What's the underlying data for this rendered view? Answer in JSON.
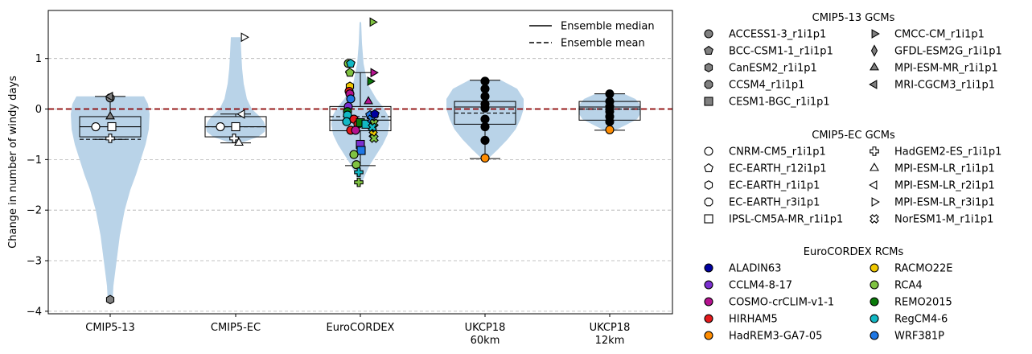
{
  "chart_data": {
    "type": "violin",
    "ylabel": "Change in number of windy days",
    "ylim": [
      -4.05,
      1.95
    ],
    "yticks": [
      -4,
      -3,
      -2,
      -1,
      0,
      1
    ],
    "ytick_labels": [
      "−4",
      "−3",
      "−2",
      "−1",
      "0",
      "1"
    ],
    "grid": "horizontal dashed",
    "zero_line": {
      "value": 0,
      "color": "#8b0000",
      "style": "dashed"
    },
    "categories": [
      {
        "label": "CMIP5-13",
        "label2": ""
      },
      {
        "label": "CMIP5-EC",
        "label2": ""
      },
      {
        "label": "EuroCORDEX",
        "label2": ""
      },
      {
        "label": "UKCP18",
        "label2": "60km"
      },
      {
        "label": "UKCP18",
        "label2": "12km"
      }
    ],
    "violin_color": "#b9d3e8",
    "violins": [
      {
        "profile": [
          [
            -3.8,
            3
          ],
          [
            -3.5,
            4
          ],
          [
            -3.0,
            8
          ],
          [
            -2.5,
            12
          ],
          [
            -2.0,
            18
          ],
          [
            -1.6,
            25
          ],
          [
            -1.3,
            32
          ],
          [
            -1.0,
            38
          ],
          [
            -0.7,
            44
          ],
          [
            -0.4,
            48
          ],
          [
            -0.1,
            49
          ],
          [
            0.1,
            47
          ],
          [
            0.25,
            42
          ]
        ]
      },
      {
        "profile": [
          [
            -0.65,
            10
          ],
          [
            -0.55,
            28
          ],
          [
            -0.45,
            36
          ],
          [
            -0.35,
            37
          ],
          [
            -0.25,
            35
          ],
          [
            -0.15,
            30
          ],
          [
            0.0,
            20
          ],
          [
            0.2,
            14
          ],
          [
            0.5,
            10
          ],
          [
            0.8,
            8
          ],
          [
            1.1,
            7
          ],
          [
            1.42,
            6
          ]
        ]
      },
      {
        "profile": [
          [
            -1.45,
            2
          ],
          [
            -1.3,
            6
          ],
          [
            -1.1,
            12
          ],
          [
            -0.9,
            20
          ],
          [
            -0.7,
            28
          ],
          [
            -0.5,
            34
          ],
          [
            -0.3,
            36
          ],
          [
            -0.15,
            35
          ],
          [
            0.0,
            30
          ],
          [
            0.2,
            20
          ],
          [
            0.5,
            9
          ],
          [
            0.9,
            4
          ],
          [
            1.3,
            2
          ],
          [
            1.72,
            1
          ]
        ]
      },
      {
        "profile": [
          [
            -0.98,
            4
          ],
          [
            -0.8,
            16
          ],
          [
            -0.6,
            28
          ],
          [
            -0.4,
            38
          ],
          [
            -0.2,
            44
          ],
          [
            0.0,
            48
          ],
          [
            0.2,
            48
          ],
          [
            0.4,
            40
          ],
          [
            0.57,
            20
          ]
        ]
      },
      {
        "profile": [
          [
            -0.42,
            7
          ],
          [
            -0.3,
            22
          ],
          [
            -0.2,
            34
          ],
          [
            -0.1,
            38
          ],
          [
            0.0,
            38
          ],
          [
            0.1,
            37
          ],
          [
            0.2,
            32
          ],
          [
            0.3,
            18
          ]
        ]
      }
    ],
    "boxes": [
      {
        "q1": -0.55,
        "q3": -0.15,
        "median": -0.35,
        "mean": -0.6,
        "whisker_low": -0.6,
        "whisker_high": 0.25
      },
      {
        "q1": -0.55,
        "q3": -0.15,
        "median": -0.35,
        "mean": -0.35,
        "whisker_low": -0.67,
        "whisker_high": -0.1
      },
      {
        "q1": -0.43,
        "q3": 0.05,
        "median": -0.22,
        "mean": -0.15,
        "whisker_low": -1.12,
        "whisker_high": 0.72
      },
      {
        "q1": -0.3,
        "q3": 0.15,
        "median": 0.04,
        "mean": -0.08,
        "whisker_low": -0.98,
        "whisker_high": 0.57
      },
      {
        "q1": -0.22,
        "q3": 0.15,
        "median": 0.04,
        "mean": 0.0,
        "whisker_low": -0.42,
        "whisker_high": 0.3
      }
    ],
    "points": [
      {
        "cat": 0,
        "dx": 0,
        "y": 0.22,
        "marker": "circle",
        "fill": "#808080"
      },
      {
        "cat": 0,
        "dx": 0,
        "y": 0.25,
        "marker": "tri-left",
        "fill": "#808080"
      },
      {
        "cat": 0,
        "dx": 0,
        "y": -3.77,
        "marker": "hexagon",
        "fill": "#808080"
      },
      {
        "cat": 0,
        "dx": 0,
        "y": -0.15,
        "marker": "tri-up",
        "fill": "#808080"
      },
      {
        "cat": 0,
        "dx": -18,
        "y": -0.35,
        "marker": "circle",
        "fill": "#ffffff"
      },
      {
        "cat": 0,
        "dx": 2,
        "y": -0.35,
        "marker": "square",
        "fill": "#ffffff"
      },
      {
        "cat": 0,
        "dx": 0,
        "y": -0.58,
        "marker": "plus",
        "fill": "#ffffff"
      },
      {
        "cat": 1,
        "dx": -19,
        "y": -0.35,
        "marker": "circle",
        "fill": "#ffffff"
      },
      {
        "cat": 1,
        "dx": 0,
        "y": -0.35,
        "marker": "square",
        "fill": "#ffffff"
      },
      {
        "cat": 1,
        "dx": 8,
        "y": -0.1,
        "marker": "tri-left",
        "fill": "#ffffff"
      },
      {
        "cat": 1,
        "dx": 10,
        "y": 1.42,
        "marker": "tri-right",
        "fill": "#ffffff"
      },
      {
        "cat": 1,
        "dx": -2,
        "y": -0.58,
        "marker": "plus",
        "fill": "#ffffff"
      },
      {
        "cat": 1,
        "dx": 4,
        "y": -0.67,
        "marker": "tri-up",
        "fill": "#ffffff"
      },
      {
        "cat": 2,
        "dx": -15,
        "y": 0.9,
        "marker": "circle",
        "fill": "#7fc241"
      },
      {
        "cat": 2,
        "dx": -12,
        "y": 0.9,
        "marker": "pentagon",
        "fill": "#12b8c4"
      },
      {
        "cat": 2,
        "dx": -13,
        "y": 0.72,
        "marker": "pentagon",
        "fill": "#7fc241"
      },
      {
        "cat": 2,
        "dx": 15,
        "y": 1.72,
        "marker": "tri-right",
        "fill": "#7fc241"
      },
      {
        "cat": 2,
        "dx": 16,
        "y": 0.72,
        "marker": "tri-right",
        "fill": "#b5128f"
      },
      {
        "cat": 2,
        "dx": 12,
        "y": 0.55,
        "marker": "tri-right",
        "fill": "#0a7a0a"
      },
      {
        "cat": 2,
        "dx": -13,
        "y": 0.45,
        "marker": "hexagon",
        "fill": "#f0c800"
      },
      {
        "cat": 2,
        "dx": -14,
        "y": 0.35,
        "marker": "circle",
        "fill": "#e41a1c"
      },
      {
        "cat": 2,
        "dx": -13,
        "y": 0.3,
        "marker": "circle",
        "fill": "#b5128f"
      },
      {
        "cat": 2,
        "dx": -12,
        "y": 0.2,
        "marker": "circle",
        "fill": "#1f77e4"
      },
      {
        "cat": 2,
        "dx": 10,
        "y": 0.15,
        "marker": "tri-up",
        "fill": "#b5128f"
      },
      {
        "cat": 2,
        "dx": -15,
        "y": 0.05,
        "marker": "circle",
        "fill": "#7b2fd0"
      },
      {
        "cat": 2,
        "dx": -16,
        "y": -0.05,
        "marker": "circle",
        "fill": "#0a7a0a"
      },
      {
        "cat": 2,
        "dx": -16,
        "y": -0.12,
        "marker": "circle",
        "fill": "#12b8c4"
      },
      {
        "cat": 2,
        "dx": -17,
        "y": -0.25,
        "marker": "circle",
        "fill": "#12b8c4"
      },
      {
        "cat": 2,
        "dx": -8,
        "y": -0.2,
        "marker": "circle",
        "fill": "#e41a1c"
      },
      {
        "cat": 2,
        "dx": -3,
        "y": -0.3,
        "marker": "circle",
        "fill": "#e41a1c"
      },
      {
        "cat": 2,
        "dx": 0,
        "y": -0.27,
        "marker": "square",
        "fill": "#0a7a0a"
      },
      {
        "cat": 2,
        "dx": 7,
        "y": -0.3,
        "marker": "square",
        "fill": "#12b8c4"
      },
      {
        "cat": 2,
        "dx": 12,
        "y": -0.12,
        "marker": "pentagon",
        "fill": "#1f77e4"
      },
      {
        "cat": 2,
        "dx": 14,
        "y": -0.2,
        "marker": "cross",
        "fill": "#1f77e4"
      },
      {
        "cat": 2,
        "dx": 17,
        "y": -0.28,
        "marker": "cross",
        "fill": "#7fc241"
      },
      {
        "cat": 2,
        "dx": 15,
        "y": -0.36,
        "marker": "cross",
        "fill": "#12b8c4"
      },
      {
        "cat": 2,
        "dx": 18,
        "y": -0.1,
        "marker": "pentagon",
        "fill": "#0000a0"
      },
      {
        "cat": 2,
        "dx": -12,
        "y": -0.42,
        "marker": "circle",
        "fill": "#e41a1c"
      },
      {
        "cat": 2,
        "dx": -6,
        "y": -0.42,
        "marker": "circle",
        "fill": "#b5128f"
      },
      {
        "cat": 2,
        "dx": 16,
        "y": -0.5,
        "marker": "cross",
        "fill": "#f0c800"
      },
      {
        "cat": 2,
        "dx": 17,
        "y": -0.58,
        "marker": "cross",
        "fill": "#7fc241"
      },
      {
        "cat": 2,
        "dx": 0,
        "y": -0.7,
        "marker": "square",
        "fill": "#7b2fd0"
      },
      {
        "cat": 2,
        "dx": 1,
        "y": -0.82,
        "marker": "square",
        "fill": "#1f77e4"
      },
      {
        "cat": 2,
        "dx": -8,
        "y": -0.9,
        "marker": "circle",
        "fill": "#7fc241"
      },
      {
        "cat": 2,
        "dx": -5,
        "y": -1.1,
        "marker": "circle",
        "fill": "#7fc241"
      },
      {
        "cat": 2,
        "dx": -2,
        "y": -1.25,
        "marker": "plus",
        "fill": "#12b8c4"
      },
      {
        "cat": 2,
        "dx": -2,
        "y": -1.45,
        "marker": "plus",
        "fill": "#7fc241"
      },
      {
        "cat": 3,
        "dx": 0,
        "y": 0.55,
        "marker": "circle",
        "fill": "#000000"
      },
      {
        "cat": 3,
        "dx": 0,
        "y": 0.4,
        "marker": "circle",
        "fill": "#000000"
      },
      {
        "cat": 3,
        "dx": 0,
        "y": 0.25,
        "marker": "circle",
        "fill": "#000000"
      },
      {
        "cat": 3,
        "dx": 0,
        "y": 0.1,
        "marker": "circle",
        "fill": "#000000"
      },
      {
        "cat": 3,
        "dx": 0,
        "y": 0.02,
        "marker": "circle",
        "fill": "#000000"
      },
      {
        "cat": 3,
        "dx": 0,
        "y": -0.2,
        "marker": "circle",
        "fill": "#000000"
      },
      {
        "cat": 3,
        "dx": 0,
        "y": -0.35,
        "marker": "circle",
        "fill": "#000000"
      },
      {
        "cat": 3,
        "dx": 0,
        "y": -0.62,
        "marker": "circle",
        "fill": "#000000"
      },
      {
        "cat": 3,
        "dx": 0,
        "y": -0.97,
        "marker": "circle",
        "fill": "#ff8c00"
      },
      {
        "cat": 4,
        "dx": 0,
        "y": 0.3,
        "marker": "circle",
        "fill": "#000000"
      },
      {
        "cat": 4,
        "dx": 0,
        "y": 0.15,
        "marker": "circle",
        "fill": "#000000"
      },
      {
        "cat": 4,
        "dx": 0,
        "y": 0.05,
        "marker": "circle",
        "fill": "#000000"
      },
      {
        "cat": 4,
        "dx": 0,
        "y": -0.05,
        "marker": "circle",
        "fill": "#000000"
      },
      {
        "cat": 4,
        "dx": 0,
        "y": -0.15,
        "marker": "circle",
        "fill": "#000000"
      },
      {
        "cat": 4,
        "dx": 0,
        "y": -0.25,
        "marker": "circle",
        "fill": "#000000"
      },
      {
        "cat": 4,
        "dx": 0,
        "y": -0.41,
        "marker": "circle",
        "fill": "#ff8c00"
      }
    ],
    "inline_legend": [
      {
        "label": "Ensemble median",
        "style": "solid"
      },
      {
        "label": "Ensemble mean",
        "style": "dashed"
      }
    ],
    "legend_groups": [
      {
        "title": "CMIP5-13 GCMs",
        "columns": [
          [
            {
              "label": "ACCESS1-3_r1i1p1",
              "marker": "circle",
              "fill": "#808080"
            },
            {
              "label": "BCC-CSM1-1_r1i1p1",
              "marker": "pentagon",
              "fill": "#808080"
            },
            {
              "label": "CanESM2_r1i1p1",
              "marker": "hexagon",
              "fill": "#808080"
            },
            {
              "label": "CCSM4_r1i1p1",
              "marker": "octagon",
              "fill": "#808080"
            },
            {
              "label": "CESM1-BGC_r1i1p1",
              "marker": "square",
              "fill": "#808080"
            }
          ],
          [
            {
              "label": "CMCC-CM_r1i1p1",
              "marker": "tri-right",
              "fill": "#808080"
            },
            {
              "label": "GFDL-ESM2G_r1i1p1",
              "marker": "diamond",
              "fill": "#808080"
            },
            {
              "label": "MPI-ESM-MR_r1i1p1",
              "marker": "tri-up",
              "fill": "#808080"
            },
            {
              "label": "MRI-CGCM3_r1i1p1",
              "marker": "tri-left",
              "fill": "#808080"
            }
          ]
        ]
      },
      {
        "title": "CMIP5-EC GCMs",
        "columns": [
          [
            {
              "label": "CNRM-CM5_r1i1p1",
              "marker": "circle",
              "fill": "#ffffff"
            },
            {
              "label": "EC-EARTH_r12i1p1",
              "marker": "pentagon",
              "fill": "#ffffff"
            },
            {
              "label": "EC-EARTH_r1i1p1",
              "marker": "hexagon",
              "fill": "#ffffff"
            },
            {
              "label": "EC-EARTH_r3i1p1",
              "marker": "octagon",
              "fill": "#ffffff"
            },
            {
              "label": "IPSL-CM5A-MR_r1i1p1",
              "marker": "square",
              "fill": "#ffffff"
            }
          ],
          [
            {
              "label": "HadGEM2-ES_r1i1p1",
              "marker": "plus",
              "fill": "#ffffff"
            },
            {
              "label": "MPI-ESM-LR_r1i1p1",
              "marker": "tri-up",
              "fill": "#ffffff"
            },
            {
              "label": "MPI-ESM-LR_r2i1p1",
              "marker": "tri-left",
              "fill": "#ffffff"
            },
            {
              "label": "MPI-ESM-LR_r3i1p1",
              "marker": "tri-right",
              "fill": "#ffffff"
            },
            {
              "label": "NorESM1-M_r1i1p1",
              "marker": "cross",
              "fill": "#ffffff"
            }
          ]
        ]
      },
      {
        "title": "EuroCORDEX RCMs",
        "columns": [
          [
            {
              "label": "ALADIN63",
              "marker": "circle",
              "fill": "#0000a0"
            },
            {
              "label": "CCLM4-8-17",
              "marker": "circle",
              "fill": "#7b2fd0"
            },
            {
              "label": "COSMO-crCLIM-v1-1",
              "marker": "circle",
              "fill": "#b5128f"
            },
            {
              "label": "HIRHAM5",
              "marker": "circle",
              "fill": "#e41a1c"
            },
            {
              "label": "HadREM3-GA7-05",
              "marker": "circle",
              "fill": "#ff8c00"
            }
          ],
          [
            {
              "label": "RACMO22E",
              "marker": "circle",
              "fill": "#f0c800"
            },
            {
              "label": "RCA4",
              "marker": "circle",
              "fill": "#7fc241"
            },
            {
              "label": "REMO2015",
              "marker": "circle",
              "fill": "#0a7a0a"
            },
            {
              "label": "RegCM4-6",
              "marker": "circle",
              "fill": "#12b8c4"
            },
            {
              "label": "WRF381P",
              "marker": "circle",
              "fill": "#1f77e4"
            }
          ]
        ]
      }
    ]
  }
}
